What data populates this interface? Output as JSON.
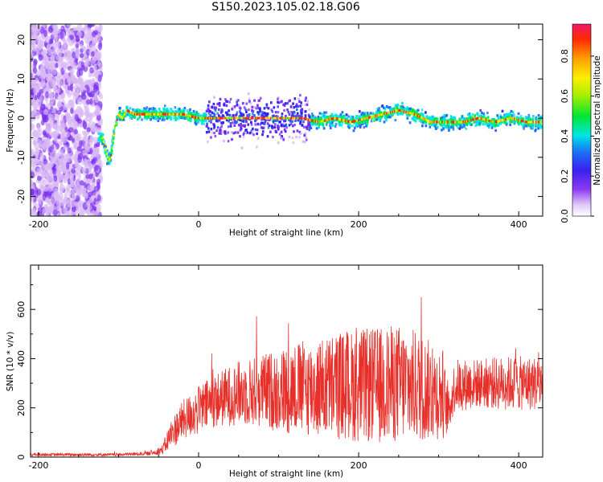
{
  "title": "S150.2023.105.02.18.G06",
  "chart_data": [
    {
      "type": "heatmap",
      "xlabel": "Height of straight line (km)",
      "ylabel": "Frequency (Hz)",
      "xlim": [
        -210,
        430
      ],
      "ylim": [
        -25,
        24
      ],
      "xticks": [
        -200,
        0,
        200,
        400
      ],
      "yticks": [
        -20,
        -10,
        0,
        10,
        20
      ],
      "colorbar": {
        "label": "Normalized spectral amplitude",
        "range": [
          0,
          0.96
        ],
        "ticks": [
          0.0,
          0.2,
          0.4,
          0.6,
          0.8
        ],
        "colormap": [
          "#ffffff",
          "#d9b8f5",
          "#7a2cf0",
          "#2a20f0",
          "#1c6df5",
          "#00e5e5",
          "#00e633",
          "#a8ef00",
          "#ffee00",
          "#ffa000",
          "#ff2a00",
          "#f0186a"
        ]
      },
      "ridge": {
        "x": [
          -120,
          -115,
          -112,
          -110,
          -105,
          -100,
          -95,
          -90,
          -80,
          -60,
          -40,
          -20,
          0,
          10,
          20,
          30,
          50,
          70,
          90,
          110,
          130,
          150,
          170,
          190,
          210,
          230,
          250,
          270,
          290,
          310,
          330,
          350,
          370,
          390,
          410,
          430
        ],
        "y": [
          -5,
          -9,
          -11,
          -10,
          -3,
          1,
          0,
          2,
          1,
          1,
          1,
          1,
          0,
          0,
          0,
          0,
          0,
          0,
          0,
          0,
          0,
          -1,
          0,
          -1,
          0,
          1,
          2,
          1,
          -1,
          -1,
          -1,
          0,
          -1,
          0,
          -1,
          -1
        ]
      }
    },
    {
      "type": "line",
      "xlabel": "Height of straight line (km)",
      "ylabel": "SNR (10 * v/v)",
      "xlim": [
        -210,
        430
      ],
      "ylim": [
        0,
        780
      ],
      "xticks": [
        -200,
        0,
        200,
        400
      ],
      "yticks": [
        0,
        200,
        400,
        600
      ],
      "color": "#e8302a",
      "envelope": {
        "x": [
          -210,
          -100,
          -60,
          -45,
          -35,
          -20,
          0,
          20,
          50,
          80,
          100,
          120,
          150,
          170,
          200,
          230,
          250,
          270,
          300,
          305,
          312,
          320,
          350,
          380,
          400,
          430
        ],
        "mean": [
          10,
          10,
          15,
          30,
          90,
          150,
          190,
          230,
          260,
          270,
          270,
          280,
          280,
          290,
          290,
          290,
          300,
          290,
          260,
          260,
          180,
          290,
          300,
          300,
          300,
          300
        ],
        "spread": [
          6,
          6,
          8,
          20,
          60,
          80,
          100,
          110,
          130,
          150,
          170,
          190,
          200,
          220,
          230,
          240,
          240,
          230,
          190,
          190,
          80,
          110,
          100,
          110,
          110,
          110
        ]
      }
    }
  ]
}
